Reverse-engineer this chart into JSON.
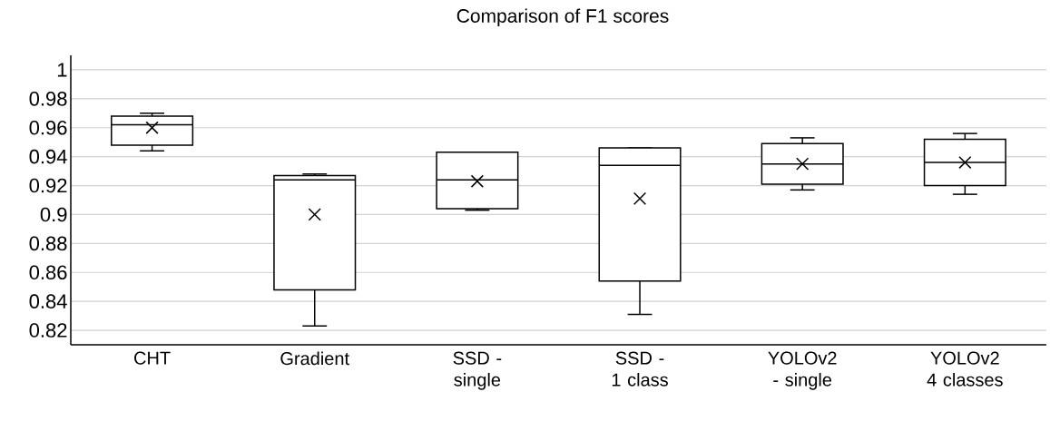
{
  "chart_data": {
    "type": "box",
    "title": "Comparison of F1 scores",
    "categories": [
      "CHT",
      "Gradient",
      "SSD - single",
      "SSD - 1 class",
      "YOLOv2 - single",
      "YOLOv2 4 classes"
    ],
    "boxes": [
      {
        "low": 0.944,
        "q1": 0.948,
        "median": 0.962,
        "q3": 0.968,
        "high": 0.97,
        "mean": 0.96
      },
      {
        "low": 0.823,
        "q1": 0.848,
        "median": 0.924,
        "q3": 0.927,
        "high": 0.928,
        "mean": 0.9
      },
      {
        "low": 0.903,
        "q1": 0.904,
        "median": 0.924,
        "q3": 0.943,
        "high": 0.943,
        "mean": 0.923
      },
      {
        "low": 0.831,
        "q1": 0.854,
        "median": 0.934,
        "q3": 0.946,
        "high": 0.946,
        "mean": 0.911
      },
      {
        "low": 0.917,
        "q1": 0.921,
        "median": 0.935,
        "q3": 0.949,
        "high": 0.953,
        "mean": 0.935
      },
      {
        "low": 0.914,
        "q1": 0.92,
        "median": 0.936,
        "q3": 0.952,
        "high": 0.956,
        "mean": 0.936
      }
    ],
    "color": "#000000",
    "ylim": [
      0.81,
      1.01
    ],
    "yticks": [
      0.82,
      0.84,
      0.86,
      0.88,
      0.9,
      0.92,
      0.94,
      0.96,
      0.98,
      1
    ],
    "grid": "y"
  }
}
